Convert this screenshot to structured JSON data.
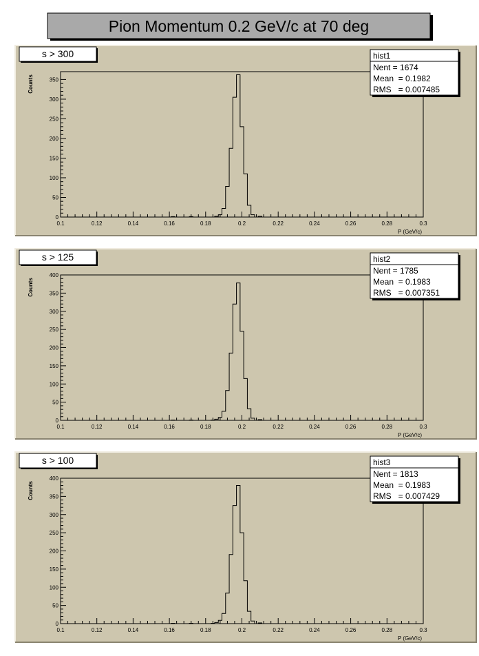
{
  "page": {
    "title": "Pion Momentum 0.2 GeV/c at 70 deg"
  },
  "chart_data": [
    {
      "type": "histogram",
      "cut_label": "s > 300",
      "stats": {
        "name": "hist1",
        "nent": "Nent = 1674",
        "mean": "Mean  = 0.1982",
        "rms": "RMS   = 0.007485"
      },
      "ylabel": "Counts",
      "xlabel": "P (GeV/c)",
      "xlim": [
        0.1,
        0.3
      ],
      "ylim": [
        0,
        370
      ],
      "x_ticks": [
        "0.1",
        "0.12",
        "0.14",
        "0.16",
        "0.18",
        "0.2",
        "0.22",
        "0.24",
        "0.26",
        "0.28",
        "0.3"
      ],
      "y_ticks": [
        0,
        50,
        100,
        150,
        200,
        250,
        300,
        350
      ],
      "bin_width": 0.002,
      "bins_x": [
        0.162,
        0.172,
        0.186,
        0.188,
        0.19,
        0.192,
        0.194,
        0.196,
        0.198,
        0.2,
        0.202,
        0.204,
        0.206,
        0.21
      ],
      "bins_y": [
        1,
        1,
        2,
        6,
        22,
        78,
        175,
        305,
        362,
        230,
        110,
        30,
        6,
        2
      ]
    },
    {
      "type": "histogram",
      "cut_label": "s > 125",
      "stats": {
        "name": "hist2",
        "nent": "Nent = 1785",
        "mean": "Mean  = 0.1983",
        "rms": "RMS   = 0.007351"
      },
      "ylabel": "Counts",
      "xlabel": "P (GeV/c)",
      "xlim": [
        0.1,
        0.3
      ],
      "ylim": [
        0,
        400
      ],
      "x_ticks": [
        "0.1",
        "0.12",
        "0.14",
        "0.16",
        "0.18",
        "0.2",
        "0.22",
        "0.24",
        "0.26",
        "0.28",
        "0.3"
      ],
      "y_ticks": [
        0,
        50,
        100,
        150,
        200,
        250,
        300,
        350,
        400
      ],
      "bin_width": 0.002,
      "bins_x": [
        0.162,
        0.172,
        0.184,
        0.186,
        0.188,
        0.19,
        0.192,
        0.194,
        0.196,
        0.198,
        0.2,
        0.202,
        0.204,
        0.206,
        0.21
      ],
      "bins_y": [
        1,
        1,
        1,
        3,
        8,
        25,
        82,
        185,
        320,
        378,
        245,
        115,
        32,
        6,
        2
      ]
    },
    {
      "type": "histogram",
      "cut_label": "s > 100",
      "stats": {
        "name": "hist3",
        "nent": "Nent = 1813",
        "mean": "Mean  = 0.1983",
        "rms": "RMS   = 0.007429"
      },
      "ylabel": "Counts",
      "xlabel": "P (GeV/c)",
      "xlim": [
        0.1,
        0.3
      ],
      "ylim": [
        0,
        400
      ],
      "x_ticks": [
        "0.1",
        "0.12",
        "0.14",
        "0.16",
        "0.18",
        "0.2",
        "0.22",
        "0.24",
        "0.26",
        "0.28",
        "0.3"
      ],
      "y_ticks": [
        0,
        50,
        100,
        150,
        200,
        250,
        300,
        350,
        400
      ],
      "bin_width": 0.002,
      "bins_x": [
        0.162,
        0.172,
        0.184,
        0.186,
        0.188,
        0.19,
        0.192,
        0.194,
        0.196,
        0.198,
        0.2,
        0.202,
        0.204,
        0.206,
        0.21
      ],
      "bins_y": [
        1,
        1,
        1,
        3,
        9,
        28,
        84,
        190,
        325,
        380,
        250,
        118,
        34,
        7,
        2
      ]
    }
  ]
}
